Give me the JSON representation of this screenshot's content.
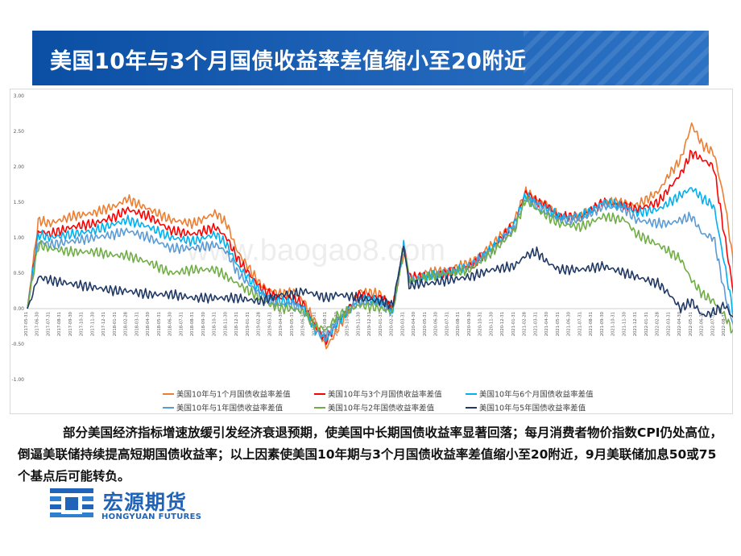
{
  "slide": {
    "title": "美国10年与3个月国债收益率差值缩小至20附近",
    "body": "部分美国经济指标增速放缓引发经济衰退预期，使美国中长期国债收益率显著回落；每月消费者物价指数CPI仍处高位，倒逼美联储持续提高短期国债收益率；以上因素使美国10年期与3个月国债收益率差值缩小至20附近，9月美联储加息50或75个基点后可能转负。",
    "watermark": "www.baogao8.com"
  },
  "logo": {
    "name": "宏源期货",
    "subtitle": "HONGYUAN FUTURES"
  },
  "chart_data": {
    "type": "line",
    "title": "",
    "xlabel": "",
    "ylabel": "",
    "ylim": [
      -1.0,
      3.0
    ],
    "yticks": [
      3.0,
      2.5,
      2.0,
      1.5,
      1.0,
      0.5,
      0.0,
      -0.5,
      -1.0
    ],
    "ytick_labels": [
      "3.00",
      "2.50",
      "2.00",
      "1.50",
      "1.00",
      "0.50",
      "0.00",
      "-0.50",
      "-1.00"
    ],
    "x_tick_labels": [
      "2017-05-31",
      "2017-06-30",
      "2017-07-31",
      "2017-08-31",
      "2017-09-30",
      "2017-10-31",
      "2017-11-30",
      "2017-12-31",
      "2018-01-31",
      "2018-02-28",
      "2018-03-31",
      "2018-04-30",
      "2018-05-31",
      "2018-06-30",
      "2018-07-31",
      "2018-08-31",
      "2018-09-30",
      "2018-10-31",
      "2018-11-30",
      "2018-12-31",
      "2019-01-31",
      "2019-02-28",
      "2019-03-31",
      "2019-04-30",
      "2019-05-31",
      "2019-06-30",
      "2019-07-31",
      "2019-08-31",
      "2019-09-30",
      "2019-10-31",
      "2019-11-30",
      "2019-12-31",
      "2020-01-31",
      "2020-02-29",
      "2020-03-31",
      "2020-04-30",
      "2020-05-31",
      "2020-06-30",
      "2020-07-31",
      "2020-08-31",
      "2020-09-30",
      "2020-10-31",
      "2020-11-30",
      "2020-12-31",
      "2021-01-31",
      "2021-02-28",
      "2021-03-31",
      "2021-04-30",
      "2021-05-31",
      "2021-06-30",
      "2021-07-31",
      "2021-08-31",
      "2021-09-30",
      "2021-10-31",
      "2021-11-30",
      "2021-12-31",
      "2022-01-31",
      "2022-02-28",
      "2022-03-31",
      "2022-04-30",
      "2022-05-31",
      "2022-06-30",
      "2022-07-31",
      "2022-08-31"
    ],
    "x_sample_months": [
      0,
      1,
      2,
      4,
      6,
      8,
      9,
      11,
      13,
      15,
      17,
      18,
      19,
      21,
      22,
      23,
      24,
      25,
      26,
      27,
      28,
      30,
      32,
      33,
      34,
      34.5,
      35,
      36,
      38,
      40,
      42,
      44,
      45,
      46,
      47,
      48,
      50,
      52,
      54,
      55,
      57,
      58,
      59,
      60,
      61,
      62,
      63,
      63.8
    ],
    "series": [
      {
        "name": "美国10年与1个月国债收益率差值",
        "color": "#ed7d31",
        "values": [
          0.0,
          1.25,
          1.2,
          1.3,
          1.35,
          1.45,
          1.55,
          1.4,
          1.25,
          1.2,
          1.35,
          1.2,
          0.8,
          0.35,
          0.25,
          0.2,
          0.25,
          0.1,
          -0.2,
          -0.55,
          -0.3,
          0.25,
          0.2,
          0.0,
          0.8,
          0.45,
          0.45,
          0.5,
          0.55,
          0.65,
          0.9,
          1.25,
          1.65,
          1.55,
          1.45,
          1.3,
          1.3,
          1.5,
          1.5,
          1.45,
          1.65,
          1.9,
          2.1,
          2.6,
          2.3,
          2.2,
          1.5,
          0.6
        ]
      },
      {
        "name": "美国10年与3个月国债收益率差值",
        "color": "#ff0000",
        "values": [
          0.0,
          1.1,
          1.05,
          1.15,
          1.2,
          1.3,
          1.4,
          1.3,
          1.1,
          1.05,
          1.15,
          1.0,
          0.7,
          0.3,
          0.2,
          0.15,
          0.15,
          0.05,
          -0.25,
          -0.45,
          -0.2,
          0.2,
          0.15,
          0.0,
          0.9,
          0.45,
          0.45,
          0.45,
          0.5,
          0.6,
          0.85,
          1.2,
          1.65,
          1.5,
          1.45,
          1.3,
          1.3,
          1.5,
          1.45,
          1.4,
          1.5,
          1.7,
          1.9,
          2.2,
          2.1,
          2.0,
          1.0,
          0.2
        ]
      },
      {
        "name": "美国10年与6个月国债收益率差值",
        "color": "#00b0f0",
        "values": [
          0.0,
          1.05,
          1.0,
          1.05,
          1.1,
          1.2,
          1.25,
          1.15,
          1.0,
          0.95,
          1.05,
          0.9,
          0.6,
          0.25,
          0.15,
          0.1,
          0.1,
          0.0,
          -0.3,
          -0.45,
          -0.2,
          0.15,
          0.1,
          -0.05,
          0.9,
          0.4,
          0.4,
          0.45,
          0.5,
          0.6,
          0.85,
          1.2,
          1.6,
          1.5,
          1.4,
          1.3,
          1.3,
          1.5,
          1.45,
          1.35,
          1.4,
          1.5,
          1.6,
          1.7,
          1.55,
          1.45,
          0.6,
          -0.1
        ]
      },
      {
        "name": "美国10年与1年国债收益率差值",
        "color": "#5b9bd5",
        "values": [
          0.0,
          0.95,
          0.9,
          0.95,
          1.0,
          1.05,
          1.1,
          1.0,
          0.85,
          0.85,
          0.9,
          0.8,
          0.5,
          0.2,
          0.1,
          0.05,
          0.05,
          -0.05,
          -0.3,
          -0.4,
          -0.15,
          0.1,
          0.05,
          -0.05,
          0.9,
          0.4,
          0.4,
          0.45,
          0.5,
          0.6,
          0.85,
          1.15,
          1.55,
          1.45,
          1.35,
          1.25,
          1.25,
          1.45,
          1.4,
          1.25,
          1.2,
          1.2,
          1.25,
          1.3,
          1.05,
          1.0,
          0.2,
          -0.25
        ]
      },
      {
        "name": "美国10年与2年国债收益率差值",
        "color": "#70ad47",
        "values": [
          0.0,
          0.9,
          0.85,
          0.8,
          0.8,
          0.75,
          0.75,
          0.65,
          0.5,
          0.55,
          0.55,
          0.45,
          0.35,
          0.15,
          0.05,
          0.0,
          0.0,
          -0.05,
          -0.25,
          -0.3,
          -0.1,
          0.05,
          0.0,
          -0.05,
          0.9,
          0.4,
          0.4,
          0.45,
          0.5,
          0.55,
          0.8,
          1.1,
          1.55,
          1.4,
          1.3,
          1.2,
          1.15,
          1.3,
          1.25,
          1.05,
          0.9,
          0.8,
          0.7,
          0.4,
          0.2,
          0.1,
          -0.1,
          -0.35
        ]
      },
      {
        "name": "美国10年与5年国债收益率差值",
        "color": "#203864",
        "values": [
          0.0,
          0.45,
          0.4,
          0.35,
          0.3,
          0.25,
          0.25,
          0.2,
          0.2,
          0.15,
          0.15,
          0.15,
          0.15,
          0.1,
          0.15,
          0.2,
          0.2,
          0.25,
          0.2,
          0.15,
          0.2,
          0.15,
          0.1,
          0.05,
          0.9,
          0.3,
          0.35,
          0.35,
          0.4,
          0.45,
          0.55,
          0.6,
          0.75,
          0.8,
          0.65,
          0.55,
          0.55,
          0.6,
          0.5,
          0.45,
          0.35,
          0.2,
          0.0,
          0.1,
          -0.1,
          -0.05,
          0.05,
          -0.15
        ]
      }
    ],
    "legend_position": "bottom"
  }
}
